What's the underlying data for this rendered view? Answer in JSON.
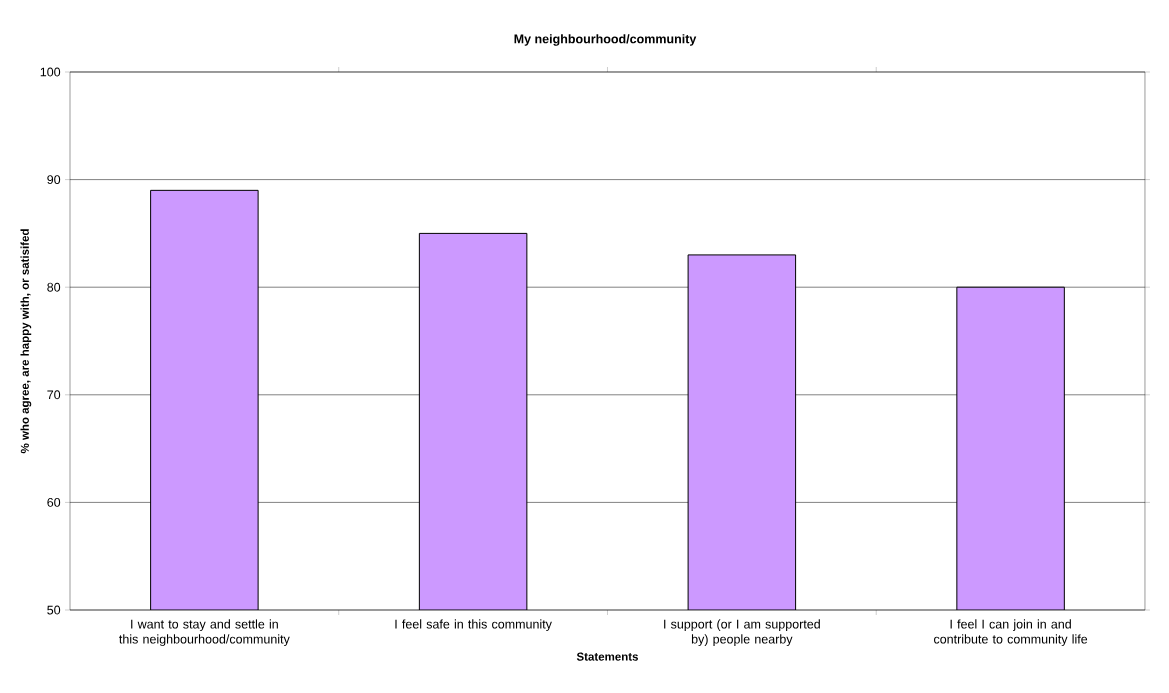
{
  "chart_data": {
    "type": "bar",
    "title": "My neighbourhood/community",
    "xlabel": "Statements",
    "ylabel": "% who agree, are happy with, or satisifed",
    "categories": [
      "I want to stay and settle in this neighbourhood/community",
      "I feel safe in this community",
      "I support (or I am supported by) people nearby",
      "I feel I can join in and contribute to community life"
    ],
    "values": [
      89,
      85,
      83,
      80
    ],
    "color": "#cc99ff",
    "ylim": [
      50,
      100
    ],
    "yticks": [
      50,
      60,
      70,
      80,
      90,
      100
    ],
    "grid": "y"
  }
}
